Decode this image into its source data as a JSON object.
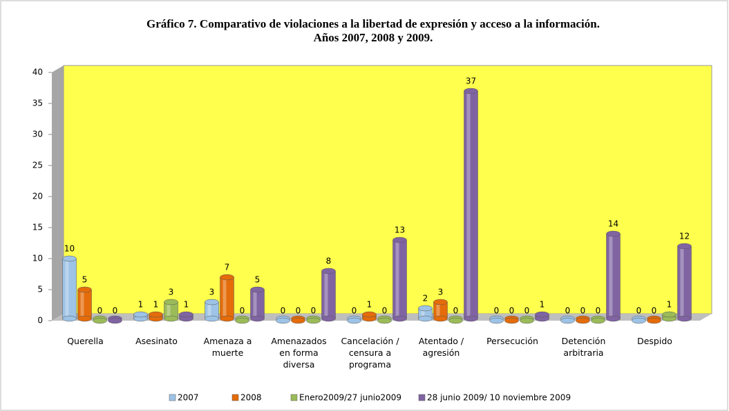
{
  "chart_data": {
    "type": "bar",
    "title": "Gráfico 7. Comparativo de violaciones a la libertad de expresión y acceso a la información.",
    "subtitle": "Años 2007, 2008 y 2009.",
    "categories": [
      "Querella",
      "Asesinato",
      "Amenaza a muerte",
      "Amenazados en forma diversa",
      "Cancelación / censura a programa",
      "Atentado / agresión",
      "Persecución",
      "Detención arbitraria",
      "Despido"
    ],
    "series": [
      {
        "name": "2007",
        "color": "#9dc3e6",
        "values": [
          10,
          1,
          3,
          0,
          0,
          2,
          0,
          0,
          0
        ]
      },
      {
        "name": "2008",
        "color": "#e46c0a",
        "values": [
          5,
          1,
          7,
          0,
          1,
          3,
          0,
          0,
          0
        ]
      },
      {
        "name": "Enero2009/27 junio2009",
        "color": "#9bbb59",
        "values": [
          0,
          3,
          0,
          0,
          0,
          0,
          0,
          0,
          1
        ]
      },
      {
        "name": "28 junio 2009/ 10 noviembre 2009",
        "color": "#8064a2",
        "values": [
          0,
          1,
          5,
          8,
          13,
          37,
          1,
          14,
          12
        ]
      }
    ],
    "ylim": [
      0,
      40
    ],
    "yticks": [
      0,
      5,
      10,
      15,
      20,
      25,
      30,
      35,
      40
    ],
    "grid": false,
    "legend": "bottom"
  }
}
